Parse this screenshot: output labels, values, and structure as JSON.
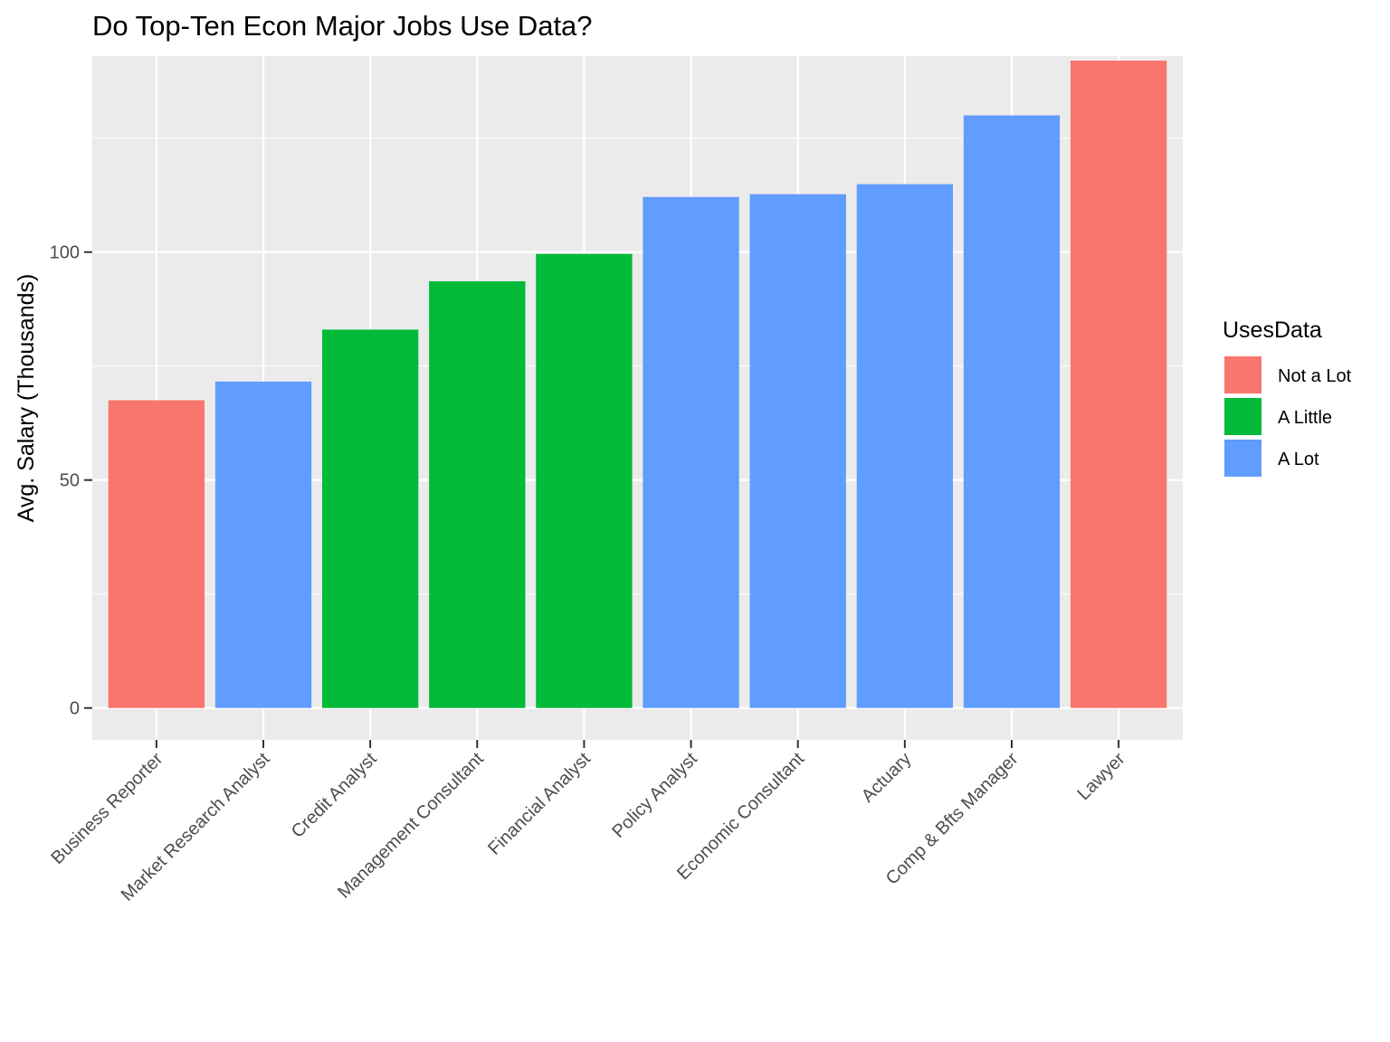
{
  "chart_data": {
    "type": "bar",
    "title": "Do Top-Ten Econ Major Jobs Use Data?",
    "xlabel": "",
    "ylabel": "Avg. Salary (Thousands)",
    "ylim": [
      -7,
      143
    ],
    "yticks": [
      0,
      50,
      100
    ],
    "grid": true,
    "legend": {
      "title": "UsesData",
      "position": "right",
      "entries": [
        {
          "label": "Not a Lot",
          "color": "#F8766D"
        },
        {
          "label": "A Little",
          "color": "#00BA38"
        },
        {
          "label": "A Lot",
          "color": "#619CFF"
        }
      ]
    },
    "categories": [
      "Business Reporter",
      "Market Research Analyst",
      "Credit Analyst",
      "Management Consultant",
      "Financial Analyst",
      "Policy Analyst",
      "Economic Consultant",
      "Actuary",
      "Comp & Bfts Manager",
      "Lawyer"
    ],
    "values": [
      67.5,
      71.6,
      83.0,
      93.6,
      99.6,
      112.1,
      112.7,
      114.9,
      130.0,
      142.0
    ],
    "uses_data": [
      "Not a Lot",
      "A Lot",
      "A Little",
      "A Little",
      "A Little",
      "A Lot",
      "A Lot",
      "A Lot",
      "A Lot",
      "Not a Lot"
    ]
  }
}
